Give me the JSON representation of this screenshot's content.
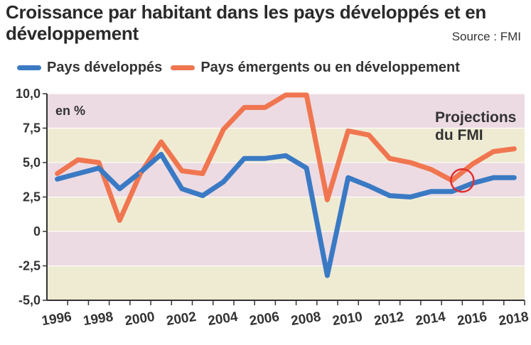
{
  "title": "Croissance par habitant dans les pays développés et en développement",
  "source": "Source : FMI",
  "annotation": "Projections du FMI",
  "unit_label": "en %",
  "colors": {
    "developed": "#3a7ac4",
    "emerging": "#f07650",
    "band_pink": "#ecdbe3",
    "band_beige": "#efebd3",
    "highlight_circle": "#e03030"
  },
  "chart_data": {
    "type": "line",
    "title": "Croissance par habitant dans les pays développés et en développement",
    "ylabel": "en %",
    "xlabel": "",
    "ylim": [
      -5,
      10
    ],
    "xlim": [
      1995.5,
      2018.5
    ],
    "x_ticks": [
      "1996",
      "1998",
      "2000",
      "2002",
      "2004",
      "2006",
      "2008",
      "2010",
      "2012",
      "2014",
      "2016",
      "2018"
    ],
    "y_ticks": [
      "10,0",
      "7,5",
      "5,0",
      "2,5",
      "0",
      "-2,5",
      "-5,0"
    ],
    "legend_position": "top",
    "projection_start": 2015.5,
    "series": [
      {
        "name": "Pays développés",
        "x": [
          1996,
          1997,
          1998,
          1999,
          2000,
          2001,
          2002,
          2003,
          2004,
          2005,
          2006,
          2007,
          2008,
          2009,
          2010,
          2011,
          2012,
          2013,
          2014,
          2015,
          2016,
          2017,
          2018
        ],
        "values": [
          3.8,
          4.2,
          4.6,
          3.1,
          4.3,
          5.6,
          3.1,
          2.6,
          3.6,
          5.3,
          5.3,
          5.5,
          4.6,
          -3.2,
          3.9,
          3.3,
          2.6,
          2.5,
          2.9,
          2.9,
          3.5,
          3.9,
          3.9
        ]
      },
      {
        "name": "Pays émergents ou en développement",
        "x": [
          1996,
          1997,
          1998,
          1999,
          2000,
          2001,
          2002,
          2003,
          2004,
          2005,
          2006,
          2007,
          2008,
          2009,
          2010,
          2011,
          2012,
          2013,
          2014,
          2015,
          2016,
          2017,
          2018
        ],
        "values": [
          4.2,
          5.2,
          5.0,
          0.8,
          4.2,
          6.5,
          4.4,
          4.2,
          7.4,
          9.0,
          9.0,
          9.9,
          9.9,
          2.3,
          7.3,
          7.0,
          5.3,
          5.0,
          4.5,
          3.7,
          4.9,
          5.8,
          6.0
        ]
      }
    ]
  }
}
